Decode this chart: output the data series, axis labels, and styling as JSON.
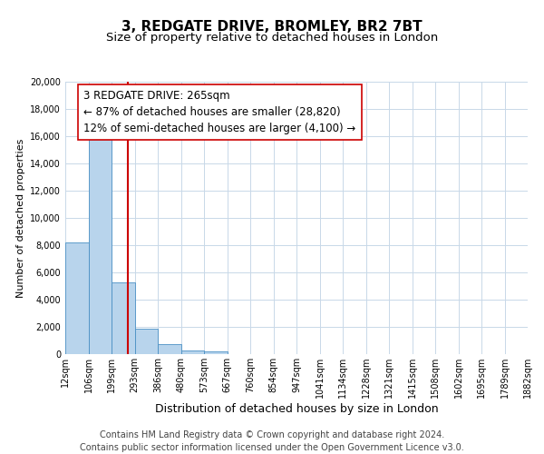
{
  "title": "3, REDGATE DRIVE, BROMLEY, BR2 7BT",
  "subtitle": "Size of property relative to detached houses in London",
  "xlabel": "Distribution of detached houses by size in London",
  "ylabel": "Number of detached properties",
  "bar_values": [
    8200,
    16600,
    5300,
    1850,
    750,
    270,
    230,
    0,
    0,
    0,
    0,
    0,
    0,
    0,
    0,
    0,
    0,
    0,
    0,
    0
  ],
  "categories": [
    "12sqm",
    "106sqm",
    "199sqm",
    "293sqm",
    "386sqm",
    "480sqm",
    "573sqm",
    "667sqm",
    "760sqm",
    "854sqm",
    "947sqm",
    "1041sqm",
    "1134sqm",
    "1228sqm",
    "1321sqm",
    "1415sqm",
    "1508sqm",
    "1602sqm",
    "1695sqm",
    "1789sqm",
    "1882sqm"
  ],
  "bar_color": "#b8d4ec",
  "bar_edge_color": "#4a90c4",
  "grid_color": "#c8d8e8",
  "background_color": "#ffffff",
  "vline_color": "#cc0000",
  "annotation_title": "3 REDGATE DRIVE: 265sqm",
  "annotation_line1": "← 87% of detached houses are smaller (28,820)",
  "annotation_line2": "12% of semi-detached houses are larger (4,100) →",
  "annotation_box_color": "#ffffff",
  "annotation_box_edge": "#cc0000",
  "ylim": [
    0,
    20000
  ],
  "yticks": [
    0,
    2000,
    4000,
    6000,
    8000,
    10000,
    12000,
    14000,
    16000,
    18000,
    20000
  ],
  "footer_line1": "Contains HM Land Registry data © Crown copyright and database right 2024.",
  "footer_line2": "Contains public sector information licensed under the Open Government Licence v3.0.",
  "title_fontsize": 11,
  "subtitle_fontsize": 9.5,
  "xlabel_fontsize": 9,
  "ylabel_fontsize": 8,
  "tick_fontsize": 7,
  "footer_fontsize": 7,
  "annotation_fontsize": 8.5
}
